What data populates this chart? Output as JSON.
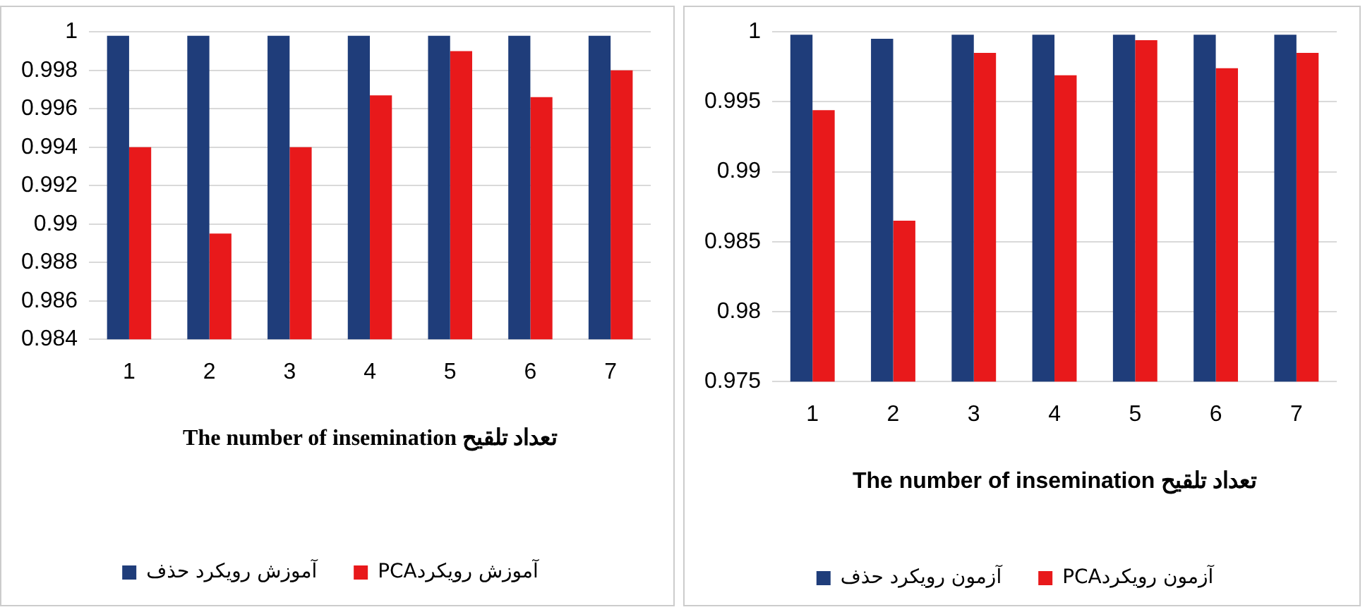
{
  "chart_data": [
    {
      "type": "bar",
      "categories": [
        "1",
        "2",
        "3",
        "4",
        "5",
        "6",
        "7"
      ],
      "xlabel": "The number of insemination تعداد تلقیح",
      "ylim": [
        0.984,
        1
      ],
      "yticks": [
        0.984,
        0.986,
        0.988,
        0.99,
        0.992,
        0.994,
        0.996,
        0.998,
        1
      ],
      "grid": "y",
      "legend": "bottom",
      "series": [
        {
          "name": "آموزش رویکرد حذف",
          "color": "#1f3d7a",
          "values": [
            0.9998,
            0.9998,
            0.9998,
            0.9998,
            0.9998,
            0.9998,
            0.9998
          ]
        },
        {
          "name": "PCAآموزش رویکرد",
          "color": "#e8191b",
          "values": [
            0.994,
            0.9895,
            0.994,
            0.9967,
            0.999,
            0.9966,
            0.998
          ]
        }
      ]
    },
    {
      "type": "bar",
      "categories": [
        "1",
        "2",
        "3",
        "4",
        "5",
        "6",
        "7"
      ],
      "xlabel": "The number of insemination تعداد تلقیح",
      "ylim": [
        0.975,
        1
      ],
      "yticks": [
        0.975,
        0.98,
        0.985,
        0.99,
        0.995,
        1
      ],
      "grid": "y",
      "legend": "bottom",
      "series": [
        {
          "name": "آزمون رویکرد حذف",
          "color": "#1f3d7a",
          "values": [
            0.9998,
            0.9995,
            0.9998,
            0.9998,
            0.9998,
            0.9998,
            0.9998
          ]
        },
        {
          "name": "PCAآزمون رویکرد",
          "color": "#e8191b",
          "values": [
            0.9944,
            0.9865,
            0.9985,
            0.9969,
            0.9994,
            0.9974,
            0.9985
          ]
        }
      ]
    }
  ]
}
